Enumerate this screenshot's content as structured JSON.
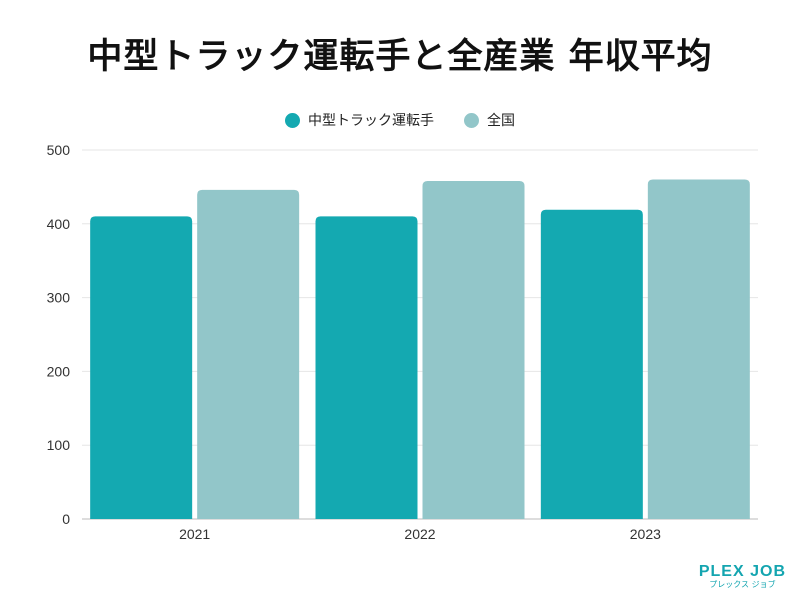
{
  "chart_data": {
    "type": "bar",
    "title": "中型トラック運転手と全産業 年収平均",
    "categories": [
      "2021",
      "2022",
      "2023"
    ],
    "series": [
      {
        "name": "中型トラック運転手",
        "values": [
          410,
          410,
          419
        ],
        "color": "#14a9b1"
      },
      {
        "name": "全国",
        "values": [
          446,
          458,
          460
        ],
        "color": "#92c6c9"
      }
    ],
    "xlabel": "",
    "ylabel": "",
    "ylim": [
      0,
      500
    ],
    "yticks": [
      0,
      100,
      200,
      300,
      400,
      500
    ],
    "grid": true,
    "legend_position": "top-center"
  },
  "logo": {
    "main": "PLEX JOB",
    "sub": "プレックス ジョブ"
  }
}
